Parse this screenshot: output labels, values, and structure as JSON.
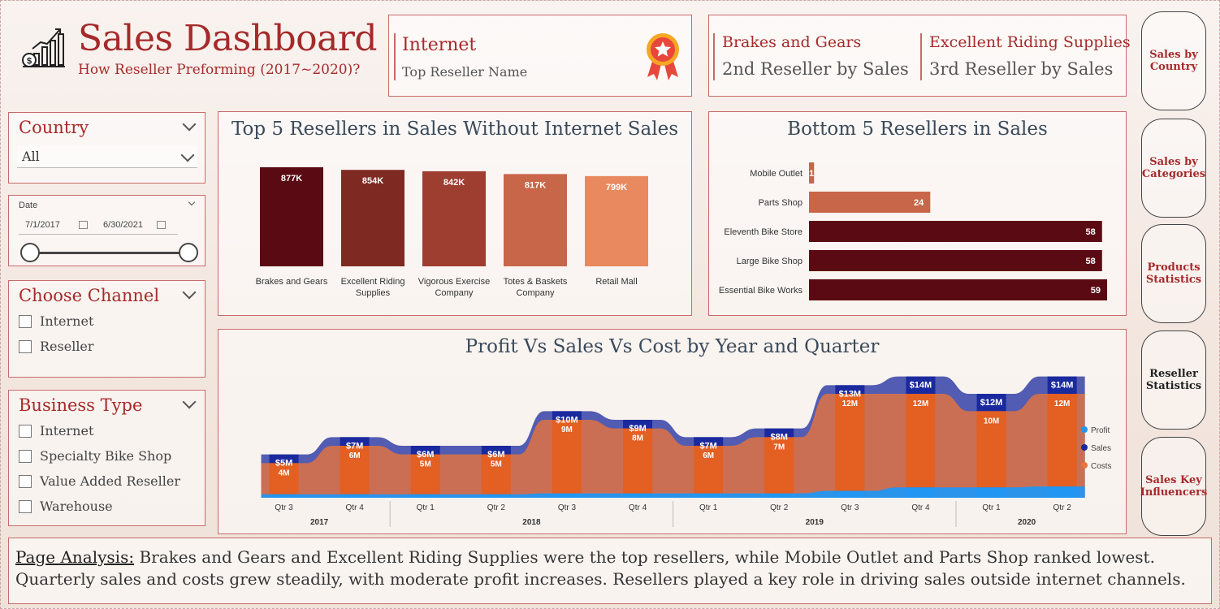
{
  "header": {
    "title": "Sales Dashboard",
    "subtitle": "How Reseller Preforming (2017~2020)?",
    "logo_icon": "sales-chart-money-icon"
  },
  "kpis": {
    "top_reseller": {
      "name": "Internet",
      "caption": "Top Reseller Name",
      "icon": "award-medal-icon"
    },
    "second": {
      "name": "Brakes and Gears",
      "caption": "2nd Reseller by Sales"
    },
    "third": {
      "name": "Excellent Riding Supplies",
      "caption": "3rd Reseller by Sales"
    }
  },
  "nav": [
    {
      "label": "Sales by Country"
    },
    {
      "label": "Sales by Categories"
    },
    {
      "label": "Products Statistics"
    },
    {
      "label": "Reseller Statistics"
    },
    {
      "label": "Sales Key Influencers"
    }
  ],
  "filters": {
    "country": {
      "title": "Country",
      "selected": "All"
    },
    "date": {
      "title": "Date",
      "start": "7/1/2017",
      "end": "6/30/2021"
    },
    "channel": {
      "title": "Choose Channel",
      "options": [
        "Internet",
        "Reseller"
      ]
    },
    "business_type": {
      "title": "Business Type",
      "options": [
        "Internet",
        "Specialty Bike Shop",
        "Value Added Reseller",
        "Warehouse"
      ]
    }
  },
  "chart_data": [
    {
      "type": "bar",
      "title": "Top 5 Resellers in Sales Without Internet Sales",
      "categories": [
        "Brakes and Gears",
        "Excellent Riding Supplies",
        "Vigorous Exercise Company",
        "Totes & Baskets Company",
        "Retail Mall"
      ],
      "category_lines": [
        [
          "Brakes and Gears"
        ],
        [
          "Excellent Riding",
          "Supplies"
        ],
        [
          "Vigorous Exercise",
          "Company"
        ],
        [
          "Totes & Baskets",
          "Company"
        ],
        [
          "Retail Mall"
        ]
      ],
      "values": [
        877,
        854,
        842,
        817,
        799
      ],
      "data_labels": [
        "877K",
        "854K",
        "842K",
        "817K",
        "799K"
      ],
      "colors": [
        "#5a0a12",
        "#7e2a22",
        "#9e3e30",
        "#c8664a",
        "#e9895f"
      ]
    },
    {
      "type": "bar",
      "orientation": "horizontal",
      "title": "Bottom 5 Resellers in Sales",
      "categories": [
        "Mobile Outlet",
        "Parts Shop",
        "Eleventh Bike Store",
        "Large Bike Shop",
        "Essential Bike Works"
      ],
      "values": [
        1,
        24,
        58,
        58,
        59
      ],
      "data_labels": [
        "1",
        "24",
        "58",
        "58",
        "59"
      ],
      "colors": [
        "#c8664a",
        "#c8664a",
        "#5a0a12",
        "#5a0a12",
        "#5a0a12"
      ]
    },
    {
      "type": "area",
      "title": "Profit Vs Sales Vs Cost by Year and Quarter",
      "categories": [
        "Qtr 3",
        "Qtr 4",
        "Qtr 1",
        "Qtr 2",
        "Qtr 3",
        "Qtr 4",
        "Qtr 1",
        "Qtr 2",
        "Qtr 3",
        "Qtr 4",
        "Qtr 1",
        "Qtr 2"
      ],
      "years": [
        {
          "label": "2017",
          "from": 0,
          "to": 1
        },
        {
          "label": "2018",
          "from": 2,
          "to": 5
        },
        {
          "label": "2019",
          "from": 6,
          "to": 9
        },
        {
          "label": "2020",
          "from": 10,
          "to": 11
        }
      ],
      "legend_position": "right",
      "series": [
        {
          "name": "Profit",
          "color": "#2196f3",
          "values": [
            0.4,
            0.4,
            0.4,
            0.4,
            0.5,
            0.5,
            0.5,
            0.5,
            0.8,
            1.2,
            1.2,
            1.3
          ]
        },
        {
          "name": "Sales",
          "color": "#1a2a9e",
          "values": [
            5,
            7,
            6,
            6,
            10,
            9,
            7,
            8,
            13,
            14,
            12,
            14
          ],
          "labels": [
            "$5M",
            "$7M",
            "$6M",
            "$6M",
            "$10M",
            "$9M",
            "$7M",
            "$8M",
            "$13M",
            "$14M",
            "$12M",
            "$14M"
          ]
        },
        {
          "name": "Costs",
          "color": "#e8743b",
          "values": [
            4,
            6,
            5,
            5,
            9,
            8,
            6,
            7,
            12,
            12,
            10,
            12
          ],
          "labels": [
            "4M",
            "6M",
            "5M",
            "5M",
            "9M",
            "8M",
            "6M",
            "7M",
            "12M",
            "12M",
            "10M",
            "12M"
          ]
        }
      ]
    }
  ],
  "analysis": {
    "label": "Page Analysis:",
    "text": " Brakes and Gears and Excellent Riding Supplies were the top resellers, while Mobile Outlet and Parts Shop ranked lowest. Quarterly sales and costs grew steadily, with moderate profit increases. Resellers played a key role in driving sales outside internet channels."
  }
}
